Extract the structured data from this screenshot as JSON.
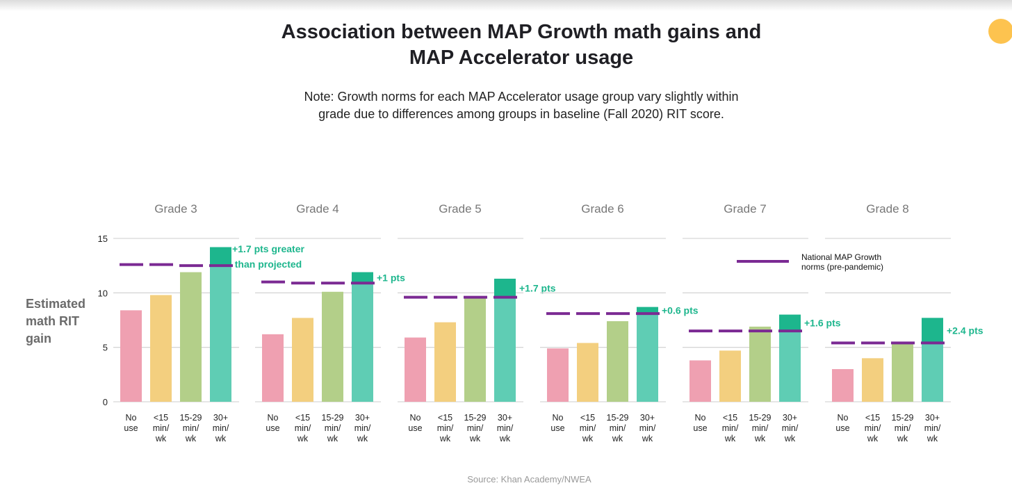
{
  "title_line1": "Association between MAP Growth math gains and",
  "title_line2": "MAP Accelerator usage",
  "note_line1": "Note: Growth norms for each MAP Accelerator usage group vary slightly within",
  "note_line2": "grade due to differences among groups in baseline (Fall 2020) RIT score.",
  "source": "Source: Khan Academy/NWEA",
  "chart_data": {
    "type": "bar",
    "ylabel_lines": [
      "Estimated",
      "math RIT",
      "gain"
    ],
    "ylim": [
      0,
      15
    ],
    "yticks": [
      0,
      5,
      10,
      15
    ],
    "grid": true,
    "categories": [
      [
        "No",
        "use"
      ],
      [
        "<15",
        "min/",
        "wk"
      ],
      [
        "15-29",
        "min/",
        "wk"
      ],
      [
        "30+",
        "min/",
        "wk"
      ]
    ],
    "legend": {
      "label_lines": [
        "National MAP Growth",
        "norms (pre-pandemic)"
      ],
      "placement": "top-right"
    },
    "colors": {
      "bars": [
        "#EFA0B1",
        "#F3CF7F",
        "#B3CF89",
        "#5FCDB4"
      ],
      "excess": "#1DB68D",
      "norm": "#7B2A93",
      "annotation": "#1DB68D",
      "grid": "#d6d6d6"
    },
    "panels": [
      {
        "label": "Grade 3",
        "values": [
          8.4,
          9.8,
          11.9,
          14.2
        ],
        "norms": [
          12.6,
          12.6,
          12.5,
          12.5
        ],
        "annotation": [
          "+1.7 pts greater",
          "than projected"
        ]
      },
      {
        "label": "Grade 4",
        "values": [
          6.2,
          7.7,
          10.1,
          11.9
        ],
        "norms": [
          11.0,
          10.9,
          10.9,
          10.9
        ],
        "annotation": [
          "+1 pts"
        ]
      },
      {
        "label": "Grade 5",
        "values": [
          5.9,
          7.3,
          9.6,
          11.3
        ],
        "norms": [
          9.6,
          9.6,
          9.6,
          9.6
        ],
        "annotation": [
          "+1.7 pts"
        ]
      },
      {
        "label": "Grade 6",
        "values": [
          4.9,
          5.4,
          7.4,
          8.7
        ],
        "norms": [
          8.1,
          8.1,
          8.1,
          8.1
        ],
        "annotation": [
          "+0.6 pts"
        ]
      },
      {
        "label": "Grade 7",
        "values": [
          3.8,
          4.7,
          6.9,
          8.0
        ],
        "norms": [
          6.5,
          6.5,
          6.5,
          6.5
        ],
        "annotation": [
          "+1.6 pts"
        ]
      },
      {
        "label": "Grade 8",
        "values": [
          3.0,
          4.0,
          5.4,
          7.7
        ],
        "norms": [
          5.4,
          5.4,
          5.4,
          5.4
        ],
        "annotation": [
          "+2.4 pts"
        ]
      }
    ]
  }
}
